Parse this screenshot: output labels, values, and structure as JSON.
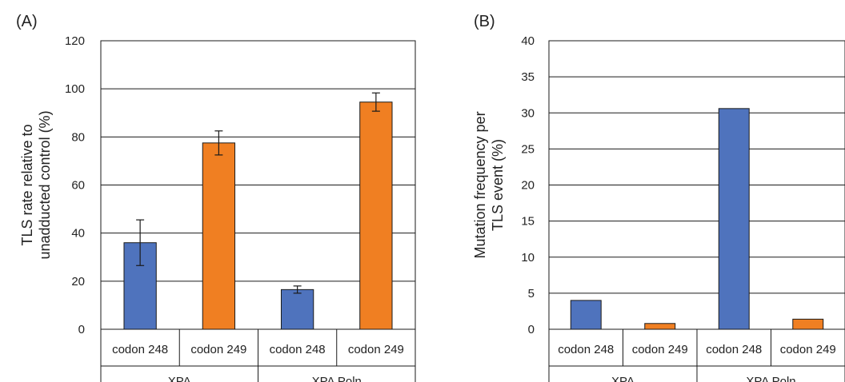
{
  "chart_data": [
    {
      "type": "bar",
      "panel_label": "(A)",
      "ylabel_lines": [
        "TLS rate relative to",
        "unadducted control (%)"
      ],
      "ylim": [
        0,
        120
      ],
      "yticks": [
        0,
        20,
        40,
        60,
        80,
        100,
        120
      ],
      "grid": true,
      "groups": [
        {
          "label": "XPA",
          "categories": [
            "codon 248",
            "codon 249"
          ]
        },
        {
          "label": "XPA Polη",
          "categories": [
            "codon 248",
            "codon 249"
          ]
        }
      ],
      "bars": [
        {
          "group": "XPA",
          "category": "codon 248",
          "value": 36,
          "error": 9.5,
          "color": "#4f73bd"
        },
        {
          "group": "XPA",
          "category": "codon 249",
          "value": 77.5,
          "error": 5,
          "color": "#f07f22"
        },
        {
          "group": "XPA Polη",
          "category": "codon 248",
          "value": 16.5,
          "error": 1.5,
          "color": "#4f73bd"
        },
        {
          "group": "XPA Polη",
          "category": "codon 249",
          "value": 94.5,
          "error": 3.8,
          "color": "#f07f22"
        }
      ]
    },
    {
      "type": "bar",
      "panel_label": "(B)",
      "ylabel_lines": [
        "Mutation frequency per",
        "TLS event (%)"
      ],
      "ylim": [
        0,
        40
      ],
      "yticks": [
        0,
        5,
        10,
        15,
        20,
        25,
        30,
        35,
        40
      ],
      "grid": true,
      "groups": [
        {
          "label": "XPA",
          "categories": [
            "codon 248",
            "codon 249"
          ]
        },
        {
          "label": "XPA Polη",
          "categories": [
            "codon 248",
            "codon 249"
          ]
        }
      ],
      "bars": [
        {
          "group": "XPA",
          "category": "codon 248",
          "value": 4.0,
          "color": "#4f73bd"
        },
        {
          "group": "XPA",
          "category": "codon 249",
          "value": 0.8,
          "color": "#f07f22"
        },
        {
          "group": "XPA Polη",
          "category": "codon 248",
          "value": 30.6,
          "color": "#4f73bd"
        },
        {
          "group": "XPA Polη",
          "category": "codon 249",
          "value": 1.4,
          "color": "#f07f22"
        }
      ]
    }
  ]
}
